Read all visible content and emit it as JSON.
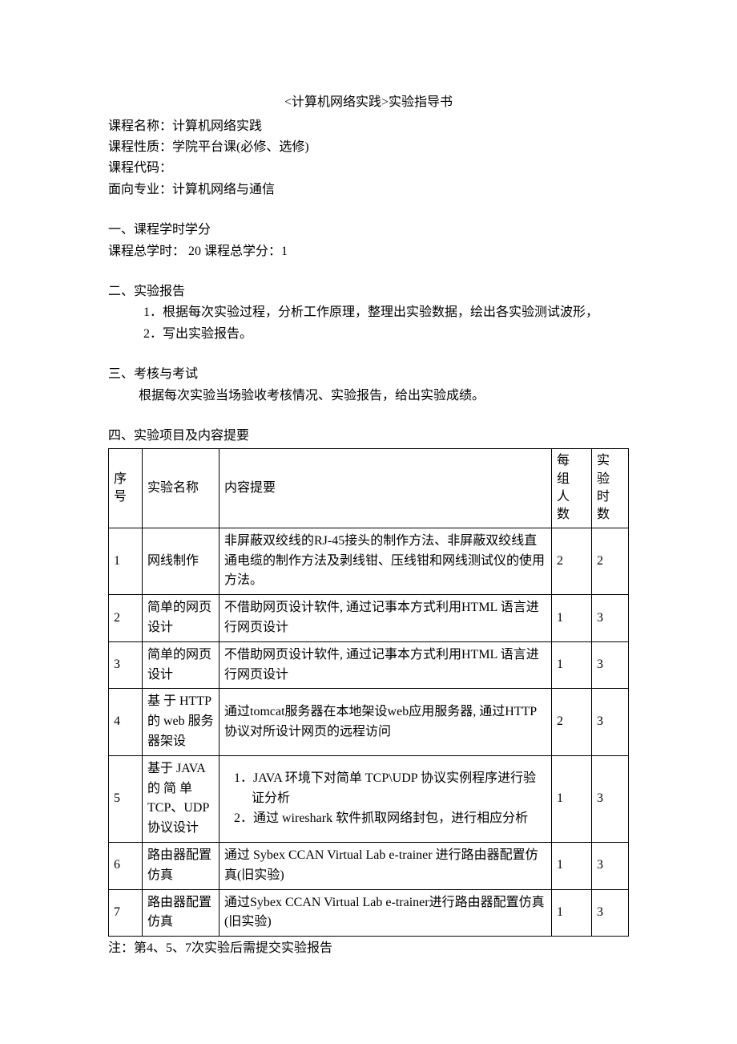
{
  "title": "<计算机网络实践>实验指导书",
  "info": {
    "course_name_label": "课程名称：",
    "course_name_value": "计算机网络实践",
    "course_nature_label": "课程性质：",
    "course_nature_value": "学院平台课(必修、选修)",
    "course_code_label": "课程代码：",
    "course_code_value": "",
    "major_label": "面向专业：",
    "major_value": "计算机网络与通信"
  },
  "section1": {
    "header": "一、课程学时学分",
    "line": "课程总学时：  20         课程总学分：1"
  },
  "section2": {
    "header": "二、实验报告",
    "items": [
      "1．根据每次实验过程，分析工作原理，整理出实验数据，绘出各实验测试波形，",
      "2．写出实验报告。"
    ]
  },
  "section3": {
    "header": "三、考核与考试",
    "para": "根据每次实验当场验收考核情况、实验报告，给出实验成绩。"
  },
  "section4": {
    "header": "四、实验项目及内容提要",
    "columns": {
      "seq": "序号",
      "name": "实验名称",
      "content": "内容提要",
      "people": "每组人数",
      "hours": "实验时数"
    },
    "rows": [
      {
        "seq": "1",
        "name": "网线制作",
        "content": "非屏蔽双绞线的RJ-45接头的制作方法、非屏蔽双绞线直通电缆的制作方法及剥线钳、压线钳和网线测试仪的使用方法。",
        "people": "2",
        "hours": "2"
      },
      {
        "seq": "2",
        "name": "简单的网页设计",
        "content": "不借助网页设计软件, 通过记事本方式利用HTML 语言进行网页设计",
        "people": "1",
        "hours": "3"
      },
      {
        "seq": "3",
        "name": "简单的网页设计",
        "content": "不借助网页设计软件, 通过记事本方式利用HTML 语言进行网页设计",
        "people": "1",
        "hours": "3"
      },
      {
        "seq": "4",
        "name": "基 于 HTTP的 web 服务器架设",
        "content": "通过tomcat服务器在本地架设web应用服务器, 通过HTTP协议对所设计网页的远程访问",
        "people": "2",
        "hours": "3"
      },
      {
        "seq": "5",
        "name": "基于 JAVA的 简 单TCP、UDP协议设计",
        "content_list": [
          "1．JAVA 环境下对简单 TCP\\UDP 协议实例程序进行验证分析",
          "2．通过 wireshark 软件抓取网络封包，进行相应分析"
        ],
        "people": "1",
        "hours": "3"
      },
      {
        "seq": "6",
        "name": "路由器配置仿真",
        "content": "通过 Sybex CCAN Virtual Lab e-trainer 进行路由器配置仿真(旧实验)",
        "people": "1",
        "hours": "3"
      },
      {
        "seq": "7",
        "name": "路由器配置仿真",
        "content": "通过Sybex CCAN Virtual Lab e-trainer进行路由器配置仿真(旧实验)",
        "people": "1",
        "hours": "3"
      }
    ],
    "note": "注：第4、5、7次实验后需提交实验报告"
  }
}
